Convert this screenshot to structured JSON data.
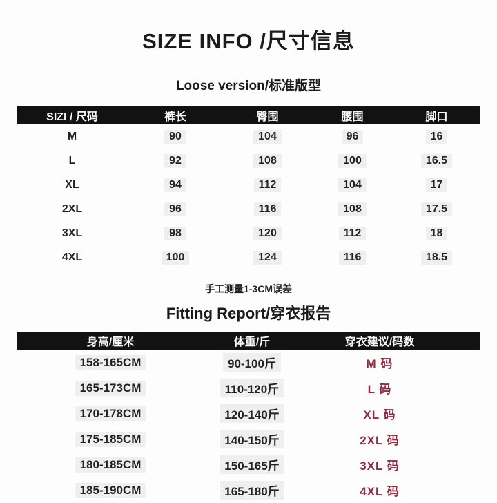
{
  "title": "SIZE INFO /尺寸信息",
  "colors": {
    "accent_red": "#8e2b3f",
    "bar_black": "#121212"
  },
  "section1": {
    "subtitle": "Loose version/标准版型",
    "table": {
      "headers": [
        "SIZI / 尺码",
        "裤长",
        "臀围",
        "腰围",
        "脚口"
      ],
      "rows": [
        [
          "M",
          "90",
          "104",
          "96",
          "16"
        ],
        [
          "L",
          "92",
          "108",
          "100",
          "16.5"
        ],
        [
          "XL",
          "94",
          "112",
          "104",
          "17"
        ],
        [
          "2XL",
          "96",
          "116",
          "108",
          "17.5"
        ],
        [
          "3XL",
          "98",
          "120",
          "112",
          "18"
        ],
        [
          "4XL",
          "100",
          "124",
          "116",
          "18.5"
        ]
      ]
    }
  },
  "note": "手工测量1-3CM误差",
  "section2": {
    "subtitle": "Fitting Report/穿衣报告",
    "table": {
      "headers": [
        "身高/厘米",
        "体重/斤",
        "穿衣建议/码数"
      ],
      "rows": [
        [
          "158-165CM",
          "90-100斤",
          "M 码"
        ],
        [
          "165-173CM",
          "110-120斤",
          "L  码"
        ],
        [
          "170-178CM",
          "120-140斤",
          "XL 码"
        ],
        [
          "175-185CM",
          "140-150斤",
          "2XL 码"
        ],
        [
          "180-185CM",
          "150-165斤",
          "3XL 码"
        ],
        [
          "185-190CM",
          "165-180斤",
          "4XL 码"
        ]
      ]
    }
  }
}
